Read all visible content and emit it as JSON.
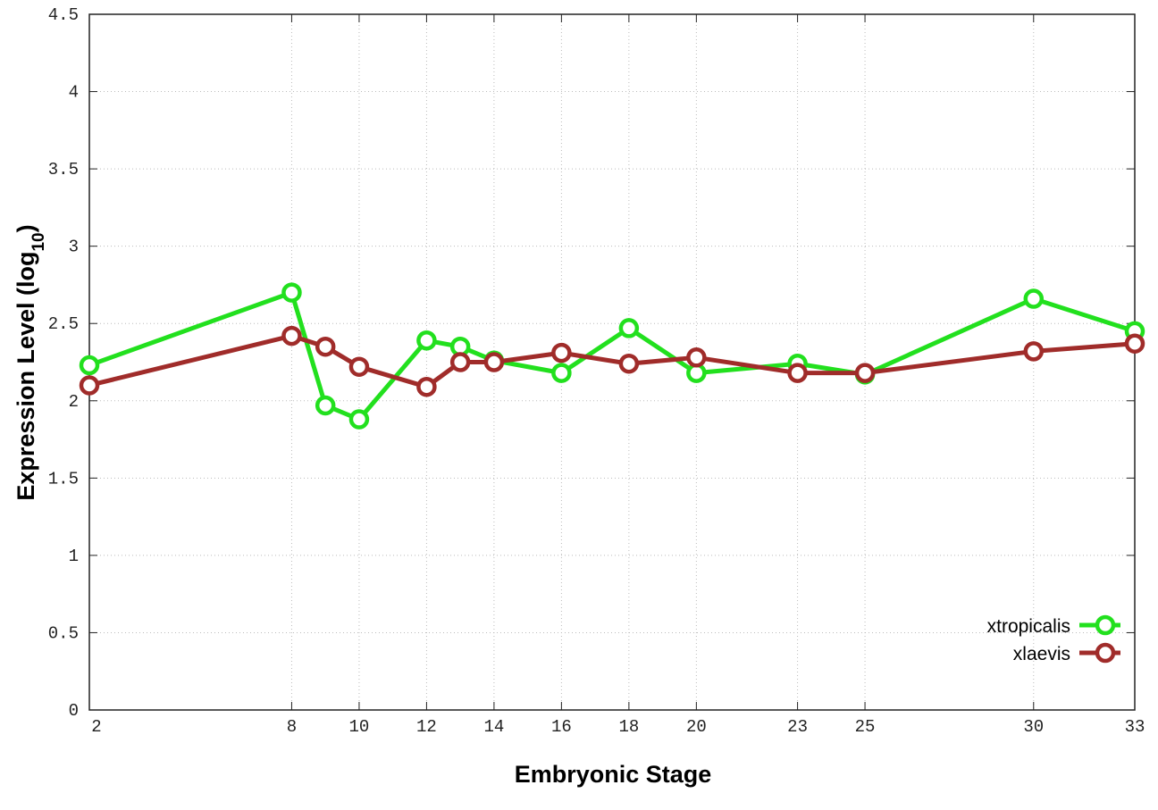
{
  "chart_data": {
    "type": "line",
    "xlabel": "Embryonic Stage",
    "ylabel_main": "Expression Level (log",
    "ylabel_sub": "10",
    "ylabel_close": ")",
    "xlim": [
      2,
      33
    ],
    "ylim": [
      0,
      4.5
    ],
    "x_ticks": [
      2,
      8,
      10,
      12,
      14,
      16,
      18,
      20,
      23,
      25,
      30,
      33
    ],
    "y_ticks": [
      "0",
      "0.5",
      "1",
      "1.5",
      "2",
      "2.5",
      "3",
      "3.5",
      "4",
      "4.5"
    ],
    "grid": true,
    "legend_position": "bottom-right",
    "x": [
      2,
      8,
      9,
      10,
      12,
      13,
      14,
      16,
      18,
      20,
      23,
      25,
      30,
      33
    ],
    "series": [
      {
        "name": "xtropicalis",
        "color": "#22e01e",
        "values": [
          2.23,
          2.7,
          1.97,
          1.88,
          2.39,
          2.35,
          2.26,
          2.18,
          2.47,
          2.18,
          2.24,
          2.17,
          2.66,
          2.45
        ]
      },
      {
        "name": "xlaevis",
        "color": "#a02c2a",
        "values": [
          2.1,
          2.42,
          2.35,
          2.22,
          2.09,
          2.25,
          2.25,
          2.31,
          2.24,
          2.28,
          2.18,
          2.18,
          2.32,
          2.37
        ]
      }
    ]
  }
}
